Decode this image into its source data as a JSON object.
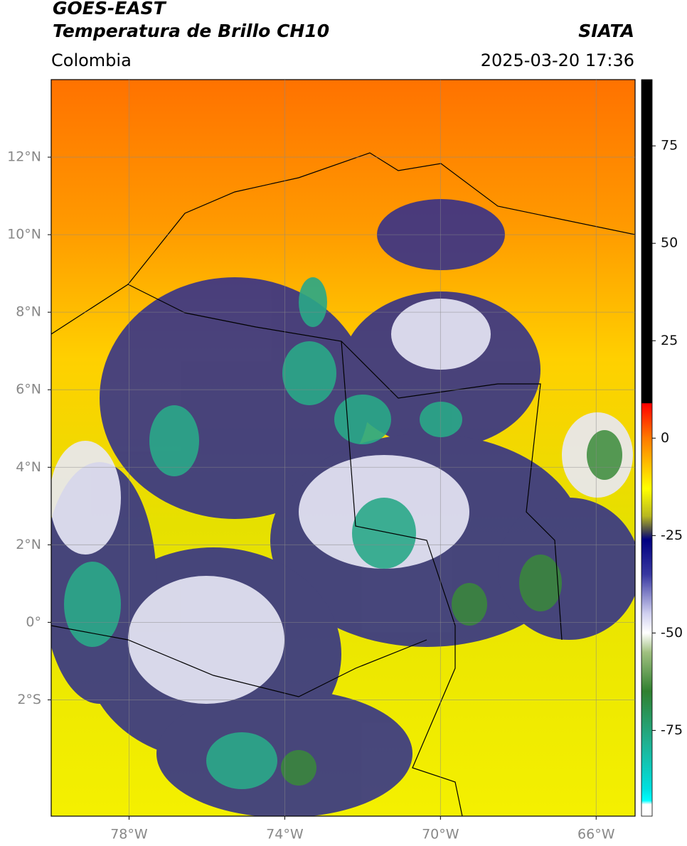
{
  "chart_data": {
    "type": "map",
    "title": "GOES-EAST",
    "subtitle": "Temperatura de Brillo CH10",
    "source": "SIATA",
    "region": "Colombia",
    "timestamp": "2025-03-20 17:36",
    "xlim": [
      -80,
      -65
    ],
    "ylim": [
      -5,
      14
    ],
    "xticks": [
      {
        "value": -78,
        "label": "78°W"
      },
      {
        "value": -74,
        "label": "74°W"
      },
      {
        "value": -70,
        "label": "70°W"
      },
      {
        "value": -66,
        "label": "66°W"
      }
    ],
    "yticks": [
      {
        "value": 12,
        "label": "12°N"
      },
      {
        "value": 10,
        "label": "10°N"
      },
      {
        "value": 8,
        "label": "8°N"
      },
      {
        "value": 6,
        "label": "6°N"
      },
      {
        "value": 4,
        "label": "4°N"
      },
      {
        "value": 2,
        "label": "2°N"
      },
      {
        "value": 0,
        "label": "0°"
      },
      {
        "value": -2,
        "label": "2°S"
      }
    ],
    "grid": true,
    "clim": [
      -97,
      92
    ],
    "cticks": [
      75,
      50,
      25,
      0,
      -25,
      -50,
      -75
    ],
    "colormap": [
      {
        "value": 92,
        "color": "#000000"
      },
      {
        "value": 9,
        "color": "#000000"
      },
      {
        "value": 8.9,
        "color": "#ff0000"
      },
      {
        "value": 0,
        "color": "#ff7a00"
      },
      {
        "value": -13,
        "color": "#ffff00"
      },
      {
        "value": -20,
        "color": "#b8b820"
      },
      {
        "value": -24,
        "color": "#404050"
      },
      {
        "value": -26,
        "color": "#000080"
      },
      {
        "value": -35,
        "color": "#3838a0"
      },
      {
        "value": -45,
        "color": "#d0d0f0"
      },
      {
        "value": -50,
        "color": "#ffffff"
      },
      {
        "value": -55,
        "color": "#a0c080"
      },
      {
        "value": -65,
        "color": "#308030"
      },
      {
        "value": -78,
        "color": "#20b090"
      },
      {
        "value": -90,
        "color": "#00e0e0"
      },
      {
        "value": -93,
        "color": "#00ffff"
      },
      {
        "value": -94,
        "color": "#ffffff"
      },
      {
        "value": -97,
        "color": "#ffffff"
      }
    ]
  }
}
